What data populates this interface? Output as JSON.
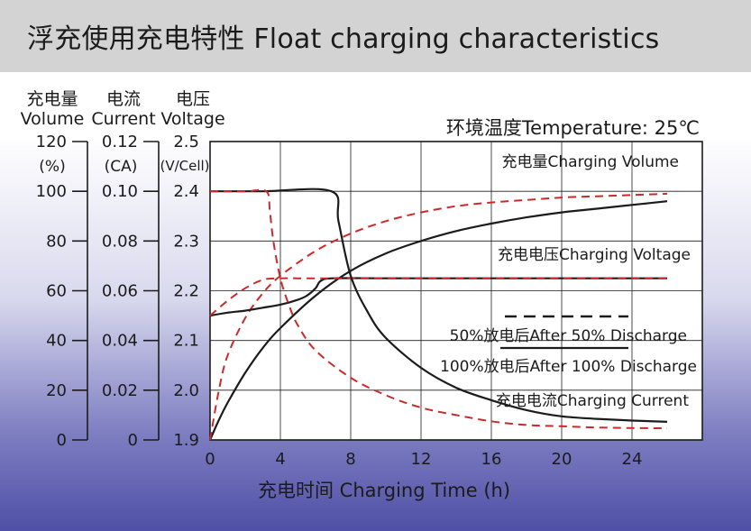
{
  "title": "浮充使用充电特性 Float charging characteristics",
  "chart_data": {
    "type": "line",
    "title": "浮充使用充电特性 Float charging characteristics",
    "temperature_label": "环境温度Temperature: 25℃",
    "xlabel": "充电时间 Charging Time (h)",
    "x_ticks": [
      "0",
      "4",
      "8",
      "12",
      "16",
      "20",
      "24"
    ],
    "xlim": [
      0,
      28
    ],
    "axes": [
      {
        "header_cn": "充电量",
        "header_en": "Volume",
        "unit": "(%)",
        "ticks": [
          "0",
          "20",
          "40",
          "60",
          "80",
          "100",
          "120"
        ],
        "range": [
          0,
          120
        ]
      },
      {
        "header_cn": "电流",
        "header_en": "Current",
        "unit": "(CA)",
        "ticks": [
          "0",
          "0.02",
          "0.04",
          "0.06",
          "0.08",
          "0.10",
          "0.12"
        ],
        "range": [
          0,
          0.12
        ]
      },
      {
        "header_cn": "电压",
        "header_en": "Voltage",
        "unit": "(V/Cell)",
        "ticks": [
          "1.9",
          "2.0",
          "2.1",
          "2.2",
          "2.3",
          "2.4",
          "2.5"
        ],
        "range": [
          1.9,
          2.5
        ]
      }
    ],
    "legend": {
      "dashed_label": "50%放电后After 50% Discharge",
      "solid_label": "100%放电后After 100% Discharge",
      "dashed_color": "#cc2a2a",
      "solid_color": "#1b1b1b"
    },
    "series_labels": {
      "volume": "充电量Charging Volume",
      "voltage": "充电电压Charging Voltage",
      "current": "充电电流Charging Current"
    },
    "series": [
      {
        "group": "volume",
        "discharge": "100%",
        "axis": 0,
        "x": [
          0,
          0.5,
          1,
          2,
          3,
          4,
          6,
          8,
          10,
          12,
          14,
          16,
          18,
          20,
          22,
          24,
          26
        ],
        "y": [
          0,
          8,
          15,
          27,
          37,
          45,
          58,
          68,
          75,
          80,
          84,
          87,
          89.5,
          91.5,
          93,
          94.5,
          96
        ]
      },
      {
        "group": "volume",
        "discharge": "50%",
        "axis": 0,
        "x": [
          0,
          0.5,
          1,
          2,
          3,
          4,
          6,
          8,
          10,
          12,
          14,
          16,
          18,
          20,
          22,
          24,
          26
        ],
        "y": [
          0,
          20,
          34,
          49,
          59,
          66,
          76,
          83,
          88,
          91.5,
          94,
          95.5,
          96.5,
          97.5,
          98,
          98.5,
          99
        ]
      },
      {
        "group": "voltage",
        "discharge": "100%",
        "axis": 2,
        "x": [
          0,
          1,
          2,
          3,
          4,
          5,
          5.5,
          6,
          6.3,
          7,
          10,
          14,
          18,
          22,
          26
        ],
        "y": [
          2.15,
          2.156,
          2.16,
          2.166,
          2.172,
          2.182,
          2.19,
          2.205,
          2.22,
          2.225,
          2.225,
          2.225,
          2.225,
          2.225,
          2.225
        ]
      },
      {
        "group": "voltage",
        "discharge": "50%",
        "axis": 2,
        "x": [
          0,
          1,
          2,
          3,
          4,
          5,
          8,
          12,
          16,
          20,
          24,
          26
        ],
        "y": [
          2.15,
          2.18,
          2.205,
          2.222,
          2.225,
          2.225,
          2.225,
          2.225,
          2.225,
          2.225,
          2.225,
          2.225
        ]
      },
      {
        "group": "current",
        "discharge": "100%",
        "axis": 1,
        "x": [
          0,
          3,
          6.9,
          7.3,
          8,
          9,
          10,
          12,
          14,
          16,
          18,
          20,
          22,
          24,
          26
        ],
        "y": [
          0.1,
          0.1,
          0.1,
          0.088,
          0.066,
          0.051,
          0.041,
          0.029,
          0.021,
          0.016,
          0.012,
          0.0095,
          0.0085,
          0.0078,
          0.0073
        ]
      },
      {
        "group": "current",
        "discharge": "50%",
        "axis": 1,
        "x": [
          0,
          2,
          3.2,
          3.4,
          3.6,
          4,
          4.5,
          5,
          6,
          8,
          10,
          12,
          14,
          16,
          18,
          20,
          22,
          24,
          26
        ],
        "y": [
          0.1,
          0.1,
          0.1,
          0.092,
          0.08,
          0.065,
          0.054,
          0.046,
          0.036,
          0.025,
          0.018,
          0.013,
          0.01,
          0.0075,
          0.006,
          0.0055,
          0.005,
          0.0048,
          0.0047
        ]
      }
    ]
  }
}
